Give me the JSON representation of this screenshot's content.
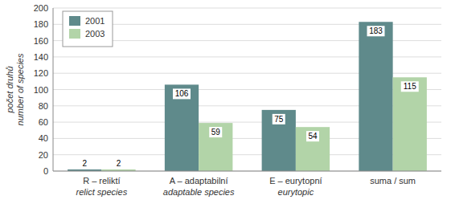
{
  "chart_data": {
    "type": "bar",
    "categories": [
      "R – reliktí\nrelict species",
      "A – adaptabilní\nadaptable species",
      "E – eurytopní\neurytopic",
      "suma / sum"
    ],
    "series": [
      {
        "name": "2001",
        "color": "#5f8a8b",
        "values": [
          2,
          106,
          75,
          183
        ]
      },
      {
        "name": "2003",
        "color": "#b2d4a8",
        "values": [
          2,
          59,
          54,
          115
        ]
      }
    ],
    "ylabel": "počet druhů\nnumber of species",
    "ylim": [
      0,
      200
    ],
    "yticks": [
      0,
      20,
      40,
      60,
      80,
      100,
      120,
      140,
      160,
      180,
      200
    ],
    "grid": true,
    "legend": "upper left",
    "data_labels": true
  }
}
